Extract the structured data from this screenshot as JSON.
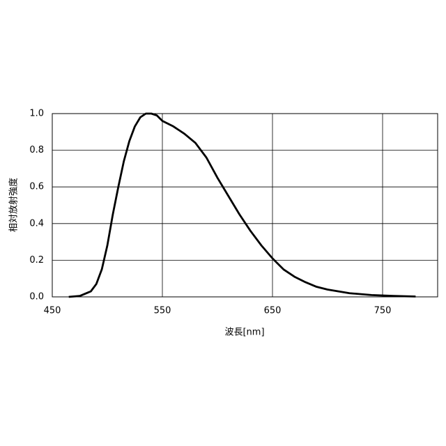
{
  "chart_data": {
    "type": "line",
    "x_label": "波長[nm]",
    "y_label": "相対放射強度",
    "xlim": [
      450,
      800
    ],
    "xticks": [
      450,
      550,
      650,
      750
    ],
    "ylim": [
      0,
      1
    ],
    "yticks": [
      {
        "value": 0,
        "label": "0.0"
      },
      0.2,
      0.4,
      0.6,
      0.8,
      {
        "value": 1,
        "label": "1.0"
      }
    ],
    "grid": true,
    "series": [
      {
        "color": "#000000",
        "x": [
          465,
          475,
          485,
          490,
          495,
          500,
          505,
          510,
          515,
          520,
          525,
          530,
          535,
          540,
          545,
          550,
          560,
          570,
          580,
          590,
          600,
          610,
          620,
          630,
          640,
          650,
          660,
          670,
          680,
          690,
          700,
          720,
          740,
          760,
          780
        ],
        "values": [
          0,
          0.005,
          0.03,
          0.07,
          0.15,
          0.28,
          0.45,
          0.6,
          0.74,
          0.85,
          0.93,
          0.98,
          1.0,
          1.0,
          0.99,
          0.96,
          0.93,
          0.89,
          0.84,
          0.76,
          0.65,
          0.55,
          0.45,
          0.36,
          0.28,
          0.21,
          0.15,
          0.11,
          0.08,
          0.055,
          0.04,
          0.02,
          0.01,
          0.005,
          0.002
        ]
      }
    ]
  }
}
